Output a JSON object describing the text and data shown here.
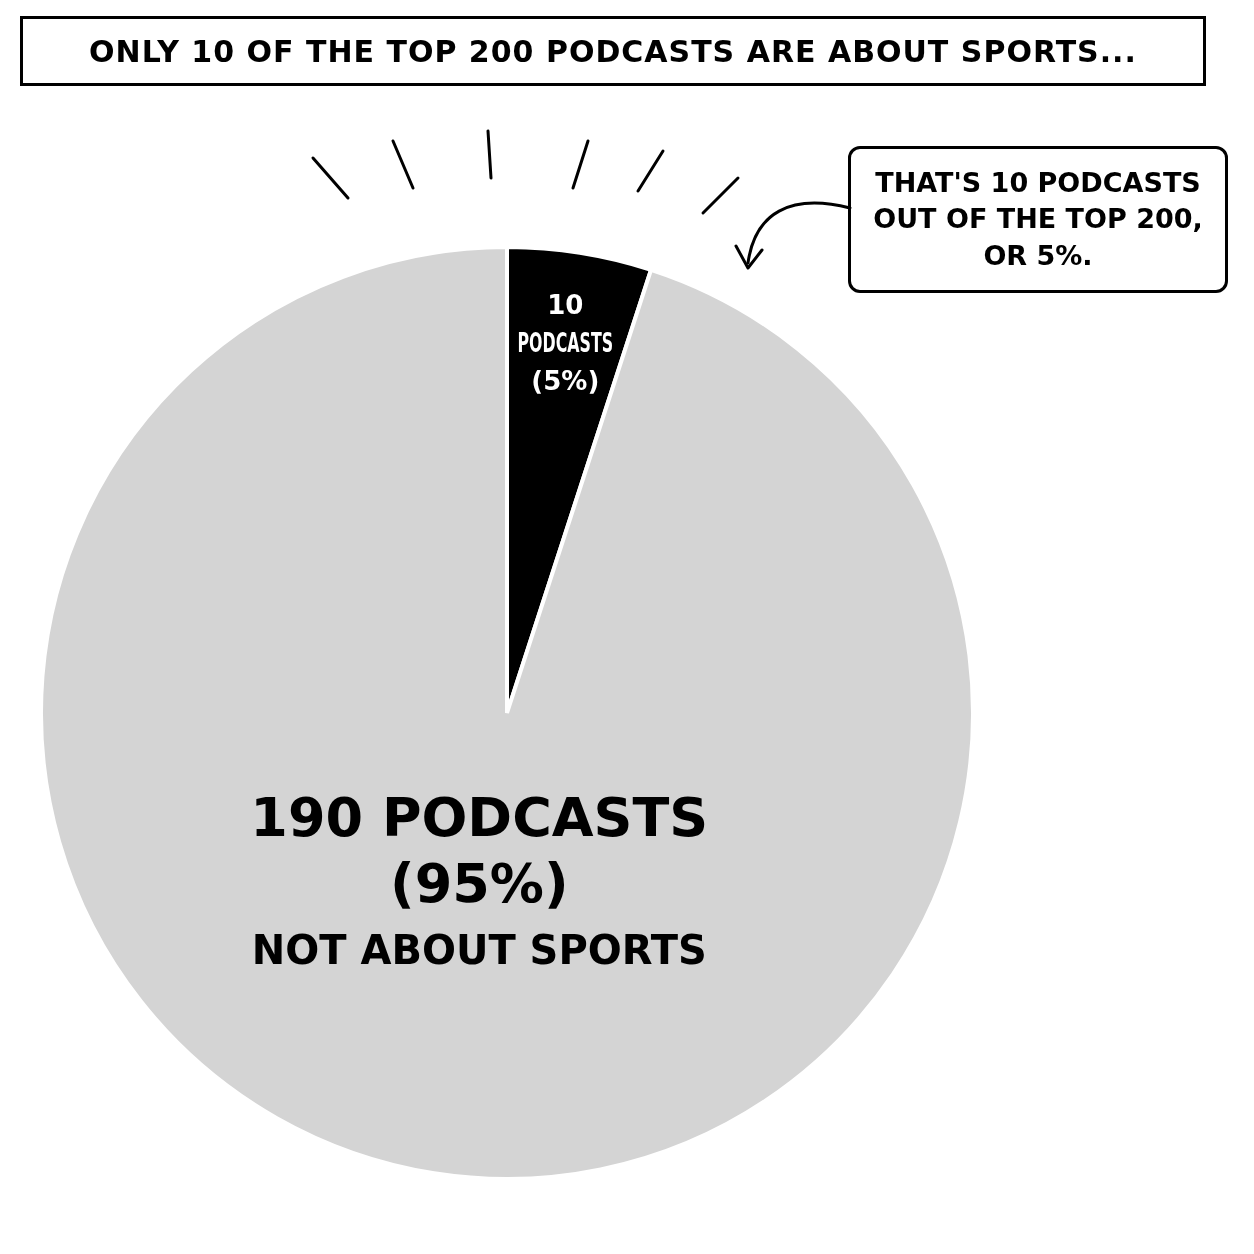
{
  "chart_data": {
    "type": "pie",
    "title": "ONLY 10 OF THE TOP 200 PODCASTS ARE ABOUT SPORTS...",
    "categories": [
      null,
      "NOT ABOUT SPORTS"
    ],
    "values": [
      10,
      190
    ],
    "colors": [
      "#000000",
      "#d4d4d4"
    ],
    "value_labels": [
      "10\nPODCASTS\n(5%)",
      "190 PODCASTS\n(95%)"
    ],
    "annotations": [
      "THAT'S 10 PODCASTS\nOUT OF THE TOP 200,\nOR 5%."
    ],
    "legend": false
  }
}
